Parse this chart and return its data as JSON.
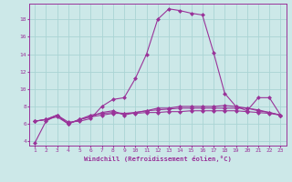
{
  "xlabel": "Windchill (Refroidissement éolien,°C)",
  "background_color": "#cce8e8",
  "grid_color": "#aad4d4",
  "line_color": "#993399",
  "x": [
    1,
    2,
    3,
    4,
    5,
    6,
    7,
    8,
    9,
    10,
    11,
    12,
    13,
    14,
    15,
    16,
    17,
    18,
    19,
    20,
    21,
    22,
    23
  ],
  "line1": [
    3.8,
    6.3,
    7.0,
    6.2,
    6.3,
    6.6,
    8.0,
    8.8,
    9.0,
    11.2,
    14.0,
    18.0,
    19.2,
    19.0,
    18.7,
    18.5,
    14.2,
    9.5,
    8.0,
    7.5,
    9.0,
    9.0,
    7.0
  ],
  "line2": [
    6.3,
    6.5,
    7.0,
    6.0,
    6.5,
    6.8,
    7.3,
    7.5,
    7.0,
    7.3,
    7.5,
    7.8,
    7.8,
    8.0,
    8.0,
    8.0,
    8.0,
    8.1,
    8.0,
    7.8,
    7.5,
    7.3,
    7.0
  ],
  "line3": [
    6.3,
    6.5,
    7.0,
    6.0,
    6.5,
    7.0,
    7.2,
    7.3,
    7.2,
    7.3,
    7.5,
    7.6,
    7.7,
    7.8,
    7.8,
    7.8,
    7.8,
    7.8,
    7.8,
    7.8,
    7.6,
    7.3,
    7.0
  ],
  "line4": [
    6.3,
    6.5,
    6.8,
    6.0,
    6.5,
    6.8,
    7.0,
    7.2,
    7.2,
    7.2,
    7.3,
    7.3,
    7.4,
    7.4,
    7.5,
    7.5,
    7.5,
    7.5,
    7.5,
    7.4,
    7.3,
    7.2,
    7.0
  ],
  "ylim": [
    3.5,
    19.8
  ],
  "xlim": [
    0.5,
    23.5
  ],
  "yticks": [
    4,
    6,
    8,
    10,
    12,
    14,
    16,
    18
  ],
  "xticks": [
    1,
    2,
    3,
    4,
    5,
    6,
    7,
    8,
    9,
    10,
    11,
    12,
    13,
    14,
    15,
    16,
    17,
    18,
    19,
    20,
    21,
    22,
    23
  ]
}
